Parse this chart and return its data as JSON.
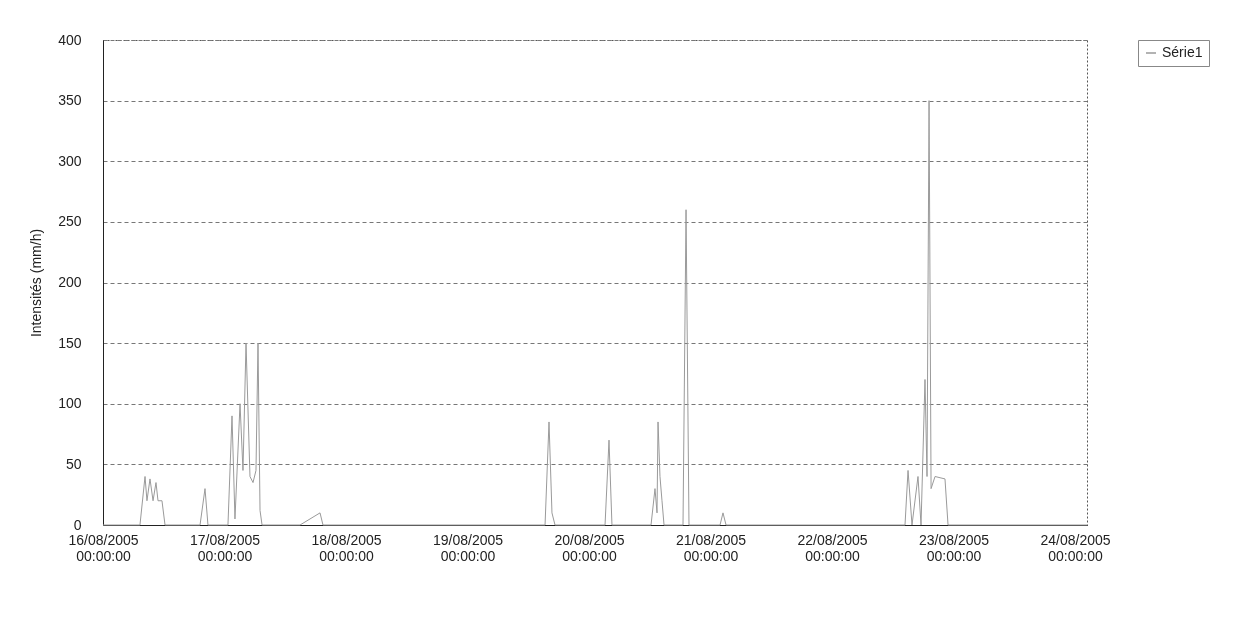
{
  "chart_data": {
    "type": "line",
    "ylabel": "Intensités (mm/h)",
    "legend": "right",
    "grid": "y",
    "xlim": [
      "2005-08-16",
      "2005-08-24T02:22"
    ],
    "ylim": [
      0,
      400
    ],
    "yticks": [
      0,
      50,
      100,
      150,
      200,
      250,
      300,
      350,
      400
    ],
    "xticks": [
      {
        "value": "2005-08-16",
        "label": "16/08/2005 00:00:00"
      },
      {
        "value": "2005-08-17",
        "label": "17/08/2005 00:00:00"
      },
      {
        "value": "2005-08-18",
        "label": "18/08/2005 00:00:00"
      },
      {
        "value": "2005-08-19",
        "label": "19/08/2005 00:00:00"
      },
      {
        "value": "2005-08-20",
        "label": "20/08/2005 00:00:00"
      },
      {
        "value": "2005-08-21",
        "label": "21/08/2005 00:00:00"
      },
      {
        "value": "2005-08-22",
        "label": "22/08/2005 00:00:00"
      },
      {
        "value": "2005-08-23",
        "label": "23/08/2005 00:00:00"
      },
      {
        "value": "2005-08-24",
        "label": "24/08/2005 00:00:00"
      }
    ],
    "x": [
      "2005-08-16",
      "2005-08-16T07:18",
      "2005-08-16T08:18",
      "2005-08-16T08:41",
      "2005-08-16T09:17",
      "2005-08-16T09:53",
      "2005-08-16T10:28",
      "2005-08-16T10:52",
      "2005-08-16T11:39",
      "2005-08-16T12:15",
      "2005-08-16T19:10",
      "2005-08-16T20:09",
      "2005-08-16T20:44",
      "2005-08-17T00:41",
      "2005-08-17T01:29",
      "2005-08-17T02:04",
      "2005-08-17T03:04",
      "2005-08-17T03:39",
      "2005-08-17T04:15",
      "2005-08-17T05:02",
      "2005-08-17T05:38",
      "2005-08-17T06:13",
      "2005-08-17T06:37",
      "2005-08-17T07:01",
      "2005-08-17T07:25",
      "2005-08-17T14:55",
      "2005-08-17T18:52",
      "2005-08-17T19:27",
      "2005-08-19T15:19",
      "2005-08-19T16:06",
      "2005-08-19T16:41",
      "2005-08-19T17:17",
      "2005-08-20T03:10",
      "2005-08-20T03:57",
      "2005-08-20T04:32",
      "2005-08-20T12:15",
      "2005-08-20T13:02",
      "2005-08-20T13:26",
      "2005-08-20T13:38",
      "2005-08-20T14:01",
      "2005-08-20T14:25",
      "2005-08-20T14:49",
      "2005-08-20T18:34",
      "2005-08-20T19:10",
      "2005-08-20T19:45",
      "2005-08-21T01:53",
      "2005-08-21T02:28",
      "2005-08-21T03:04",
      "2005-08-22T14:25",
      "2005-08-22T15:01",
      "2005-08-22T15:48",
      "2005-08-22T16:59",
      "2005-08-22T17:35",
      "2005-08-22T18:22",
      "2005-08-22T18:46",
      "2005-08-22T19:10",
      "2005-08-22T19:34",
      "2005-08-22T20:21",
      "2005-08-22T22:19",
      "2005-08-22T22:55",
      "2005-08-24T02:22"
    ],
    "series": [
      {
        "name": "Série1",
        "color": "#9a9a9a",
        "values": [
          0,
          0,
          40,
          20,
          38,
          20,
          35,
          20,
          20,
          0,
          0,
          30,
          0,
          0,
          90,
          5,
          100,
          45,
          150,
          40,
          35,
          45,
          150,
          12,
          0,
          0,
          10,
          0,
          0,
          85,
          10,
          0,
          0,
          70,
          0,
          0,
          30,
          10,
          85,
          40,
          20,
          0,
          0,
          260,
          0,
          0,
          10,
          0,
          0,
          45,
          0,
          40,
          0,
          120,
          40,
          350,
          30,
          40,
          38,
          0,
          0
        ]
      }
    ]
  }
}
